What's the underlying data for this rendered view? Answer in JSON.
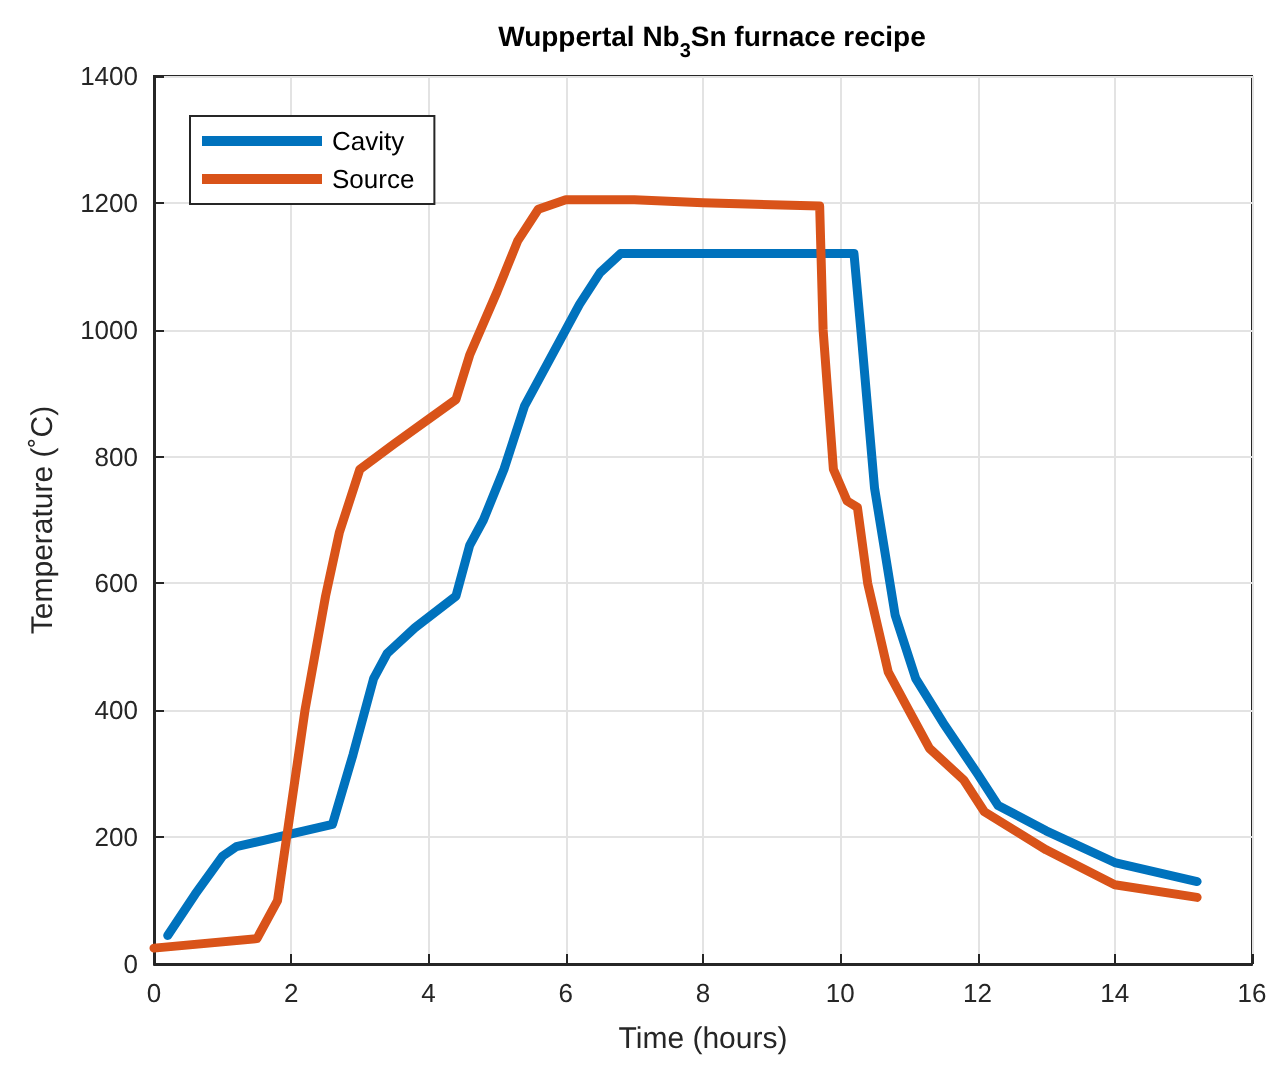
{
  "chart_data": {
    "type": "line",
    "title": "Wuppertal Nb$_{3}$Sn furnace recipe",
    "xlabel": "Time (hours)",
    "ylabel": "Temperature (˚C)",
    "xlim": [
      0,
      16
    ],
    "xticks": [
      0,
      2,
      4,
      6,
      8,
      10,
      12,
      14,
      16
    ],
    "ylim": [
      0,
      1400
    ],
    "yticks": [
      0,
      200,
      400,
      600,
      800,
      1000,
      1200,
      1400
    ],
    "grid": true,
    "legend": "top left",
    "marker": "none",
    "line_style": "solid",
    "series": [
      {
        "name": "Cavity",
        "color": "#0072bd",
        "x": [
          0.2,
          0.6,
          1.0,
          1.2,
          1.6,
          2.0,
          2.6,
          2.9,
          3.2,
          3.4,
          3.8,
          4.4,
          4.6,
          4.8,
          5.1,
          5.4,
          5.8,
          6.2,
          6.5,
          6.8,
          8,
          9,
          10.2,
          10.3,
          10.5,
          10.8,
          11.1,
          11.5,
          12,
          12.3,
          13,
          14,
          15.2
        ],
        "values": [
          45,
          110,
          170,
          185,
          195,
          205,
          220,
          330,
          450,
          490,
          530,
          580,
          660,
          700,
          780,
          880,
          960,
          1040,
          1090,
          1120,
          1120,
          1120,
          1120,
          1000,
          750,
          550,
          450,
          380,
          300,
          250,
          210,
          160,
          130
        ]
      },
      {
        "name": "Source",
        "color": "#d95319",
        "x": [
          0,
          1.5,
          1.8,
          2.0,
          2.2,
          2.5,
          2.7,
          3.0,
          3.5,
          4.4,
          4.6,
          5.0,
          5.3,
          5.6,
          6.0,
          7,
          8,
          9.7,
          9.75,
          9.9,
          10.1,
          10.25,
          10.4,
          10.7,
          11.0,
          11.3,
          11.8,
          12.1,
          13.0,
          14.0,
          15.2
        ],
        "values": [
          25,
          40,
          100,
          250,
          400,
          580,
          680,
          780,
          820,
          890,
          960,
          1060,
          1140,
          1190,
          1205,
          1205,
          1200,
          1195,
          1000,
          780,
          730,
          720,
          600,
          460,
          400,
          340,
          290,
          240,
          180,
          125,
          105
        ]
      }
    ]
  }
}
